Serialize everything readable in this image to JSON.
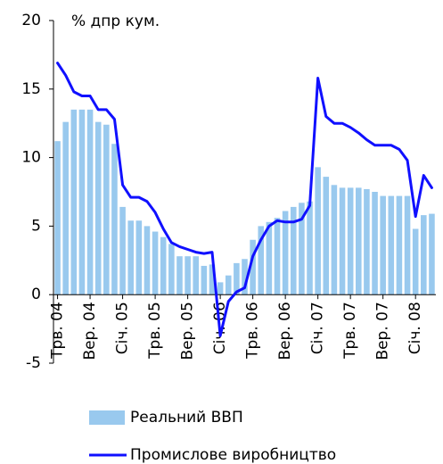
{
  "chart_data": {
    "type": "bar_line",
    "y_label": "% дпр кум.",
    "categories": [
      "Трв. 04",
      null,
      null,
      null,
      "Вер. 04",
      null,
      null,
      null,
      "Січ. 05",
      null,
      null,
      null,
      "Трв. 05",
      null,
      null,
      null,
      "Вер. 05",
      null,
      null,
      null,
      "Січ. 06",
      null,
      null,
      null,
      "Трв. 06",
      null,
      null,
      null,
      "Вер. 06",
      null,
      null,
      null,
      "Січ. 07",
      null,
      null,
      null,
      "Трв. 07",
      null,
      null,
      null,
      "Вер. 07",
      null,
      null,
      null,
      "Січ. 08",
      null,
      null
    ],
    "series": [
      {
        "name": "Реальний ВВП",
        "type": "bar",
        "color": "#99c9ee",
        "values": [
          11.2,
          12.6,
          13.5,
          13.5,
          13.5,
          12.6,
          12.4,
          11.0,
          6.4,
          5.4,
          5.4,
          5.0,
          4.6,
          4.2,
          3.7,
          2.8,
          2.8,
          2.8,
          2.1,
          2.2,
          0.9,
          1.4,
          2.3,
          2.6,
          4.0,
          5.0,
          5.3,
          5.6,
          6.1,
          6.4,
          6.7,
          6.8,
          9.3,
          8.6,
          8.0,
          7.8,
          7.8,
          7.8,
          7.7,
          7.5,
          7.2,
          7.2,
          7.2,
          7.2,
          4.8,
          5.8,
          5.9
        ]
      },
      {
        "name": "Промислове виробництво",
        "type": "line",
        "color": "#1010ff",
        "values": [
          16.9,
          16.0,
          14.8,
          14.5,
          14.5,
          13.5,
          13.5,
          12.8,
          8.0,
          7.1,
          7.1,
          6.8,
          6.0,
          4.8,
          3.8,
          3.5,
          3.3,
          3.1,
          3.0,
          3.1,
          -3.0,
          -0.5,
          0.2,
          0.5,
          2.8,
          4.0,
          5.0,
          5.4,
          5.3,
          5.3,
          5.5,
          6.5,
          15.8,
          13.0,
          12.5,
          12.5,
          12.2,
          11.8,
          11.3,
          10.9,
          10.9,
          10.9,
          10.6,
          9.8,
          5.7,
          8.7,
          7.8
        ]
      }
    ],
    "ylim": [
      -5,
      20
    ],
    "yticks": [
      -5,
      0,
      5,
      10,
      15,
      20
    ]
  }
}
